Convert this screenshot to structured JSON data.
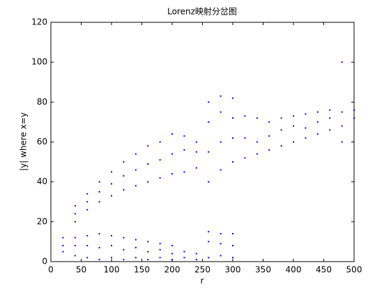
{
  "chart_data": {
    "type": "scatter",
    "title": "Lorenz映射分岔图",
    "x_label": "r",
    "y_label": "|y| where x=y",
    "color": "#0000ff",
    "x": [
      20,
      20,
      20,
      40,
      40,
      40,
      40,
      40,
      40,
      60,
      60,
      60,
      60,
      60,
      60,
      80,
      80,
      80,
      80,
      80,
      80,
      100,
      100,
      100,
      100,
      100,
      100,
      120,
      120,
      120,
      120,
      120,
      120,
      140,
      140,
      140,
      140,
      140,
      140,
      160,
      160,
      160,
      160,
      160,
      160,
      180,
      180,
      180,
      180,
      180,
      180,
      200,
      200,
      200,
      200,
      200,
      200,
      220,
      220,
      220,
      220,
      220,
      240,
      240,
      240,
      240,
      240,
      260,
      260,
      260,
      260,
      260,
      260,
      260,
      280,
      280,
      280,
      280,
      280,
      280,
      280,
      300,
      300,
      300,
      300,
      300,
      300,
      300,
      320,
      320,
      320,
      340,
      340,
      340,
      360,
      360,
      360,
      380,
      380,
      380,
      400,
      400,
      400,
      420,
      420,
      420,
      440,
      440,
      440,
      460,
      460,
      460,
      480,
      480,
      480,
      480,
      500,
      500
    ],
    "y": [
      5,
      8,
      12,
      20,
      24,
      28,
      3,
      8,
      12,
      26,
      30,
      34,
      2,
      8,
      13,
      30,
      35,
      40,
      1,
      7,
      14,
      33,
      39,
      45,
      2,
      8,
      13,
      36,
      43,
      50,
      1,
      6,
      12,
      38,
      46,
      54,
      2,
      7,
      11,
      40,
      49,
      58,
      1,
      5,
      10,
      42,
      51,
      60,
      2,
      6,
      9,
      44,
      54,
      64,
      1,
      4,
      8,
      45,
      56,
      63,
      2,
      5,
      47,
      55,
      60,
      1,
      4,
      40,
      55,
      70,
      80,
      2,
      10,
      15,
      46,
      60,
      75,
      83,
      3,
      9,
      14,
      50,
      62,
      72,
      82,
      2,
      8,
      14,
      52,
      62,
      73,
      54,
      60,
      72,
      56,
      63,
      70,
      58,
      66,
      72,
      60,
      68,
      73,
      62,
      67,
      74,
      64,
      70,
      75,
      66,
      72,
      76,
      68,
      75,
      100,
      60,
      72,
      76
    ],
    "xlim": [
      0,
      500
    ],
    "ylim": [
      0,
      120
    ],
    "xticks": [
      0,
      50,
      100,
      150,
      200,
      250,
      300,
      350,
      400,
      450,
      500
    ],
    "yticks": [
      0,
      20,
      40,
      60,
      80,
      100,
      120
    ]
  }
}
